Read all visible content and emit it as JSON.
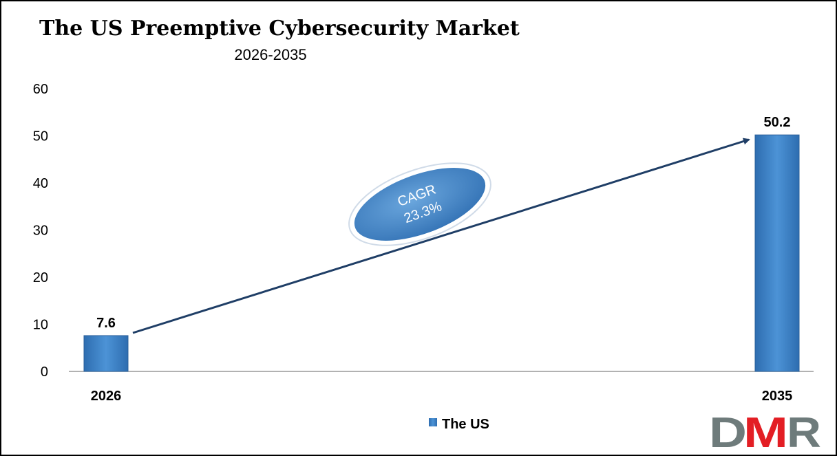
{
  "chart_data": {
    "type": "bar",
    "title": "The US Preemptive Cybersecurity Market",
    "subtitle": "2026-2035",
    "categories": [
      "2026",
      "2035"
    ],
    "series": [
      {
        "name": "The US",
        "values": [
          7.6,
          50.2
        ]
      }
    ],
    "data_labels": [
      "7.6",
      "50.2"
    ],
    "ylim": [
      0,
      60
    ],
    "yticks": [
      0,
      10,
      20,
      30,
      40,
      50,
      60
    ],
    "grid": false,
    "legend": "bottom",
    "annotation": {
      "line1": "CAGR",
      "line2": "23.3%"
    },
    "colors": {
      "bar": "#3A7FC4",
      "arrow": "#1F3E66",
      "ellipse": "#4A8ACB"
    }
  },
  "logo": {
    "text": "DMR",
    "colors": {
      "gray": "#6E7B7B",
      "red": "#E31E24"
    }
  }
}
